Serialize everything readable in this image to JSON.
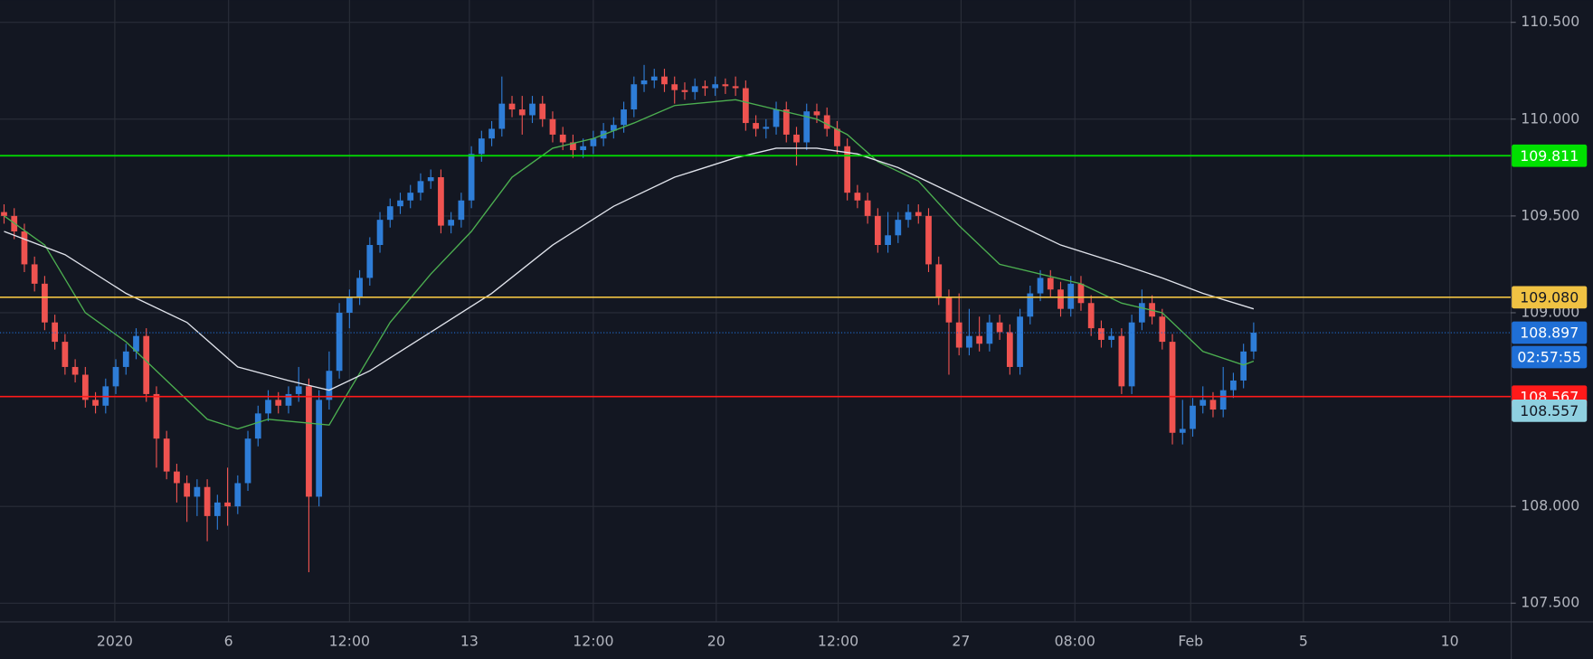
{
  "chart_data": {
    "type": "candlestick",
    "up_color": "#2e7dd7",
    "down_color": "#ef5350",
    "open": [
      109.52,
      109.5,
      109.42,
      109.25,
      109.15,
      108.95,
      108.85,
      108.72,
      108.68,
      108.55,
      108.52,
      108.62,
      108.72,
      108.8,
      108.88,
      108.58,
      108.35,
      108.18,
      108.12,
      108.05,
      108.1,
      107.95,
      108.02,
      108.0,
      108.12,
      108.35,
      108.48,
      108.55,
      108.52,
      108.58,
      108.62,
      108.05,
      108.55,
      108.7,
      109.0,
      109.08,
      109.18,
      109.35,
      109.48,
      109.55,
      109.58,
      109.62,
      109.68,
      109.7,
      109.45,
      109.48,
      109.58,
      109.82,
      109.9,
      109.95,
      110.08,
      110.05,
      110.02,
      110.08,
      110.0,
      109.92,
      109.88,
      109.84,
      109.86,
      109.9,
      109.94,
      109.97,
      110.05,
      110.18,
      110.2,
      110.22,
      110.18,
      110.15,
      110.14,
      110.17,
      110.16,
      110.18,
      110.17,
      110.16,
      109.98,
      109.95,
      109.96,
      110.05,
      109.92,
      109.88,
      110.04,
      110.02,
      109.95,
      109.86,
      109.62,
      109.58,
      109.5,
      109.35,
      109.4,
      109.48,
      109.52,
      109.5,
      109.25,
      109.08,
      108.95,
      108.82,
      108.88,
      108.84,
      108.95,
      108.9,
      108.72,
      108.98,
      109.1,
      109.18,
      109.12,
      109.02,
      109.15,
      109.05,
      108.92,
      108.86,
      108.88,
      108.62,
      108.95,
      109.05,
      108.98,
      108.85,
      108.38,
      108.4,
      108.52,
      108.55,
      108.5,
      108.6,
      108.65,
      108.8
    ],
    "high": [
      109.56,
      109.54,
      109.46,
      109.29,
      109.19,
      108.99,
      108.89,
      108.76,
      108.72,
      108.59,
      108.66,
      108.76,
      108.84,
      108.92,
      108.92,
      108.62,
      108.39,
      108.22,
      108.16,
      108.14,
      108.14,
      108.06,
      108.2,
      108.16,
      108.39,
      108.52,
      108.6,
      108.59,
      108.62,
      108.72,
      108.66,
      108.6,
      108.8,
      109.05,
      109.12,
      109.22,
      109.39,
      109.52,
      109.59,
      109.62,
      109.66,
      109.72,
      109.74,
      109.74,
      109.52,
      109.62,
      109.86,
      109.94,
      109.99,
      110.22,
      110.12,
      110.12,
      110.12,
      110.12,
      110.04,
      109.96,
      109.92,
      109.9,
      109.94,
      109.98,
      110.01,
      110.09,
      110.22,
      110.28,
      110.26,
      110.26,
      110.22,
      110.19,
      110.21,
      110.2,
      110.22,
      110.21,
      110.22,
      110.2,
      110.02,
      110.0,
      110.09,
      110.09,
      109.96,
      110.08,
      110.08,
      110.06,
      109.99,
      109.9,
      109.66,
      109.62,
      109.54,
      109.52,
      109.52,
      109.56,
      109.56,
      109.54,
      109.29,
      109.12,
      109.1,
      109.02,
      108.98,
      108.99,
      108.99,
      108.94,
      109.02,
      109.14,
      109.22,
      109.22,
      109.16,
      109.19,
      109.19,
      109.09,
      108.96,
      108.92,
      108.92,
      108.99,
      109.12,
      109.09,
      109.02,
      108.89,
      108.55,
      108.56,
      108.62,
      108.59,
      108.72,
      108.69,
      108.84,
      108.95
    ],
    "low": [
      109.46,
      109.38,
      109.21,
      109.11,
      108.91,
      108.81,
      108.68,
      108.64,
      108.51,
      108.48,
      108.48,
      108.58,
      108.68,
      108.76,
      108.54,
      108.2,
      108.14,
      108.02,
      107.92,
      107.95,
      107.82,
      107.88,
      107.9,
      107.96,
      108.08,
      108.31,
      108.44,
      108.48,
      108.48,
      108.54,
      107.66,
      108.0,
      108.5,
      108.66,
      108.92,
      109.04,
      109.14,
      109.31,
      109.44,
      109.51,
      109.54,
      109.58,
      109.64,
      109.41,
      109.41,
      109.44,
      109.54,
      109.78,
      109.86,
      109.91,
      110.01,
      109.92,
      109.98,
      109.96,
      109.88,
      109.84,
      109.8,
      109.8,
      109.82,
      109.86,
      109.9,
      109.93,
      110.01,
      110.14,
      110.16,
      110.14,
      110.08,
      110.1,
      110.1,
      110.12,
      110.12,
      110.13,
      110.12,
      109.94,
      109.91,
      109.9,
      109.92,
      109.88,
      109.76,
      109.84,
      109.98,
      109.91,
      109.82,
      109.58,
      109.54,
      109.46,
      109.31,
      109.31,
      109.36,
      109.44,
      109.46,
      109.21,
      109.04,
      108.68,
      108.78,
      108.78,
      108.8,
      108.8,
      108.86,
      108.68,
      108.68,
      108.94,
      109.06,
      109.08,
      108.98,
      108.98,
      109.01,
      108.88,
      108.82,
      108.82,
      108.58,
      108.58,
      108.91,
      108.94,
      108.81,
      108.32,
      108.32,
      108.36,
      108.48,
      108.46,
      108.46,
      108.56,
      108.61,
      108.76
    ],
    "close": [
      109.5,
      109.42,
      109.25,
      109.15,
      108.95,
      108.85,
      108.72,
      108.68,
      108.55,
      108.52,
      108.62,
      108.72,
      108.8,
      108.88,
      108.58,
      108.35,
      108.18,
      108.12,
      108.05,
      108.1,
      107.95,
      108.02,
      108.0,
      108.12,
      108.35,
      108.48,
      108.55,
      108.52,
      108.58,
      108.62,
      108.05,
      108.55,
      108.7,
      109.0,
      109.08,
      109.18,
      109.35,
      109.48,
      109.55,
      109.58,
      109.62,
      109.68,
      109.7,
      109.45,
      109.48,
      109.58,
      109.82,
      109.9,
      109.95,
      110.08,
      110.05,
      110.02,
      110.08,
      110.0,
      109.92,
      109.88,
      109.84,
      109.86,
      109.9,
      109.94,
      109.97,
      110.05,
      110.18,
      110.2,
      110.22,
      110.18,
      110.15,
      110.14,
      110.17,
      110.16,
      110.18,
      110.17,
      110.16,
      109.98,
      109.95,
      109.96,
      110.05,
      109.92,
      109.88,
      110.04,
      110.02,
      109.95,
      109.86,
      109.62,
      109.58,
      109.5,
      109.35,
      109.4,
      109.48,
      109.52,
      109.5,
      109.25,
      109.08,
      108.95,
      108.82,
      108.88,
      108.84,
      108.95,
      108.9,
      108.72,
      108.98,
      109.1,
      109.18,
      109.12,
      109.02,
      109.15,
      109.05,
      108.92,
      108.86,
      108.88,
      108.62,
      108.95,
      109.05,
      108.98,
      108.85,
      108.38,
      108.4,
      108.52,
      108.55,
      108.5,
      108.6,
      108.65,
      108.8,
      108.897
    ],
    "series": [
      {
        "color": "#4caf50",
        "x": [
          0,
          4,
          8,
          12,
          16,
          20,
          23,
          26,
          30,
          32,
          34,
          38,
          42,
          46,
          50,
          54,
          58,
          62,
          66,
          72,
          76,
          80,
          83,
          86,
          90,
          94,
          98,
          102,
          106,
          110,
          114,
          118,
          122,
          123
        ],
        "values": [
          109.5,
          109.35,
          109.0,
          108.85,
          108.65,
          108.45,
          108.4,
          108.45,
          108.43,
          108.42,
          108.6,
          108.95,
          109.2,
          109.42,
          109.7,
          109.85,
          109.9,
          109.98,
          110.07,
          110.1,
          110.05,
          110.0,
          109.92,
          109.78,
          109.68,
          109.45,
          109.25,
          109.2,
          109.15,
          109.05,
          109.0,
          108.8,
          108.73,
          108.75
        ]
      },
      {
        "color": "#e0e3eb",
        "x": [
          0,
          6,
          12,
          18,
          23,
          28,
          32,
          36,
          42,
          48,
          54,
          60,
          66,
          72,
          76,
          80,
          84,
          88,
          92,
          98,
          104,
          110,
          114,
          118,
          123
        ],
        "values": [
          109.42,
          109.3,
          109.1,
          108.95,
          108.72,
          108.65,
          108.6,
          108.7,
          108.9,
          109.1,
          109.35,
          109.55,
          109.7,
          109.8,
          109.85,
          109.85,
          109.82,
          109.75,
          109.65,
          109.5,
          109.35,
          109.25,
          109.18,
          109.1,
          109.02
        ]
      }
    ],
    "xlim": [
      -0.4,
      148.3
    ],
    "xticks": [
      {
        "value": 10.9,
        "label": "2020"
      },
      {
        "value": 22.1,
        "label": "6"
      },
      {
        "value": 34.0,
        "label": "12:00"
      },
      {
        "value": 45.8,
        "label": "13"
      },
      {
        "value": 58.0,
        "label": "12:00"
      },
      {
        "value": 70.1,
        "label": "20"
      },
      {
        "value": 82.1,
        "label": "12:00"
      },
      {
        "value": 94.2,
        "label": "27"
      },
      {
        "value": 105.4,
        "label": "08:00"
      },
      {
        "value": 116.8,
        "label": "Feb"
      },
      {
        "value": 127.9,
        "label": "5"
      },
      {
        "value": 142.3,
        "label": "10"
      }
    ],
    "ylim": [
      107.406,
      110.615
    ],
    "yticks": [
      {
        "value": 107.5,
        "label": "107.500"
      },
      {
        "value": 108,
        "label": "108.000"
      },
      {
        "value": 109,
        "label": "109.000"
      },
      {
        "value": 109.5,
        "label": "109.500"
      },
      {
        "value": 110,
        "label": "110.000"
      },
      {
        "value": 110.5,
        "label": "110.500"
      }
    ],
    "grid": true,
    "price_lines": [
      {
        "value": 109.811,
        "label": "109.811",
        "color": "#00e000"
      },
      {
        "value": 109.08,
        "label": "109.080",
        "color": "#f0c243"
      },
      {
        "value": 108.567,
        "label": "108.567",
        "color": "#ff1a1a"
      }
    ],
    "last_price": {
      "value": 108.897,
      "label": "108.897",
      "color": "#1f6fd6",
      "countdown": "02:57:55"
    },
    "price_tag": {
      "value": 108.557,
      "label": "108.557",
      "color": "#8fd0e0"
    }
  }
}
